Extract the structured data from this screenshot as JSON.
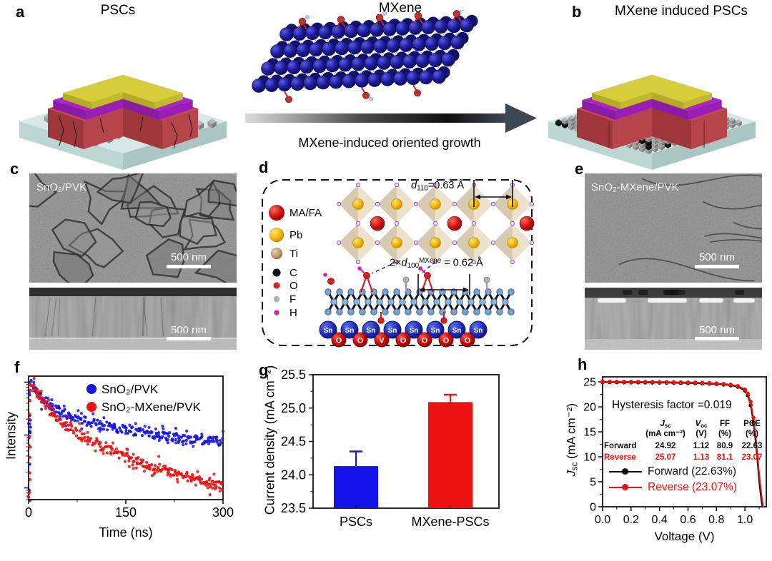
{
  "panels": {
    "a": {
      "label": "a",
      "title": "PSCs"
    },
    "mxene": {
      "title": "MXene",
      "caption": "MXene-induced oriented growth"
    },
    "b": {
      "label": "b",
      "title": "MXene induced PSCs"
    },
    "c": {
      "label": "c",
      "image_label": "SnO₂/PVK",
      "scale_top": "500 nm",
      "scale_bottom": "500 nm"
    },
    "d": {
      "label": "d",
      "legend": [
        {
          "name": "MA/FA",
          "color": "#d40f0f",
          "r": 11
        },
        {
          "name": "Pb",
          "color": "#f2b600",
          "r": 10
        },
        {
          "name": "Ti",
          "color": "#c79b72",
          "r": 8
        },
        {
          "name": "C",
          "color": "#121212",
          "r": 5.5
        },
        {
          "name": "O",
          "color": "#dd2121",
          "r": 4.5
        },
        {
          "name": "F",
          "color": "#b3b3b3",
          "r": 4
        },
        {
          "name": "H",
          "color": "#e01ba4",
          "r": 3.5
        }
      ],
      "annotation_perovskite": [
        {
          "t": "d",
          "s": "i"
        },
        {
          "t": "110",
          "s": "sub"
        },
        {
          "t": "=0.63 Å",
          "s": ""
        }
      ],
      "annotation_mxene": [
        {
          "t": "2×",
          "s": ""
        },
        {
          "t": "d",
          "s": "i"
        },
        {
          "t": "100",
          "s": "sub"
        },
        {
          "t": "MXene",
          "s": "sup"
        },
        {
          "t": " = 0.62 Å",
          "s": ""
        }
      ],
      "sn_label": "Sn",
      "o_label": "O",
      "vacancy_label": "V"
    },
    "e": {
      "label": "e",
      "image_label": "SnO₂-MXene/PVK",
      "scale_top": "500 nm",
      "scale_bottom": "500 nm"
    },
    "f": {
      "label": "f"
    },
    "g": {
      "label": "g"
    },
    "h": {
      "label": "h"
    }
  },
  "chart_data": [
    {
      "id": "f",
      "type": "scatter",
      "xlabel": "Time (ns)",
      "ylabel": "Intensity",
      "xlim": [
        0,
        300
      ],
      "xticks": [
        0,
        150,
        300
      ],
      "yscale": "log",
      "ylim": [
        0.006,
        1.3
      ],
      "legend_position": "top-left-inside",
      "series": [
        {
          "name": "SnO₂/PVK",
          "color": "#1414e0",
          "points": [
            [
              2,
              1.0
            ],
            [
              4,
              0.95
            ],
            [
              6,
              0.88
            ],
            [
              8,
              0.82
            ],
            [
              10,
              0.76
            ],
            [
              14,
              0.65
            ],
            [
              18,
              0.56
            ],
            [
              22,
              0.49
            ],
            [
              26,
              0.435
            ],
            [
              30,
              0.395
            ],
            [
              36,
              0.345
            ],
            [
              42,
              0.31
            ],
            [
              50,
              0.275
            ],
            [
              58,
              0.248
            ],
            [
              66,
              0.228
            ],
            [
              75,
              0.208
            ],
            [
              85,
              0.19
            ],
            [
              95,
              0.176
            ],
            [
              110,
              0.158
            ],
            [
              125,
              0.144
            ],
            [
              140,
              0.132
            ],
            [
              155,
              0.122
            ],
            [
              170,
              0.113
            ],
            [
              185,
              0.106
            ],
            [
              200,
              0.1
            ],
            [
              220,
              0.092
            ],
            [
              240,
              0.086
            ],
            [
              260,
              0.081
            ],
            [
              280,
              0.077
            ],
            [
              300,
              0.074
            ]
          ]
        },
        {
          "name": "SnO₂-MXene/PVK",
          "color": "#ea1212",
          "points": [
            [
              2,
              1.0
            ],
            [
              4,
              0.92
            ],
            [
              6,
              0.84
            ],
            [
              8,
              0.77
            ],
            [
              10,
              0.7
            ],
            [
              14,
              0.59
            ],
            [
              18,
              0.5
            ],
            [
              22,
              0.425
            ],
            [
              26,
              0.365
            ],
            [
              30,
              0.315
            ],
            [
              36,
              0.26
            ],
            [
              42,
              0.22
            ],
            [
              50,
              0.18
            ],
            [
              58,
              0.15
            ],
            [
              66,
              0.127
            ],
            [
              75,
              0.107
            ],
            [
              85,
              0.091
            ],
            [
              95,
              0.078
            ],
            [
              110,
              0.063
            ],
            [
              125,
              0.052
            ],
            [
              140,
              0.044
            ],
            [
              155,
              0.037
            ],
            [
              170,
              0.032
            ],
            [
              185,
              0.027
            ],
            [
              200,
              0.024
            ],
            [
              220,
              0.02
            ],
            [
              240,
              0.017
            ],
            [
              260,
              0.0145
            ],
            [
              280,
              0.0125
            ],
            [
              300,
              0.011
            ]
          ]
        }
      ]
    },
    {
      "id": "g",
      "type": "bar",
      "categories": [
        "PSCs",
        "MXene-PSCs"
      ],
      "values": [
        24.13,
        25.09
      ],
      "errors": [
        0.22,
        0.11
      ],
      "colors": [
        "#1212e6",
        "#ee1111"
      ],
      "ylabel": "Current density (mA cm⁻²)",
      "ylim": [
        23.5,
        25.5
      ],
      "yticks": [
        "23.5",
        "24.0",
        "24.5",
        "25.0",
        "25.5"
      ]
    },
    {
      "id": "h",
      "type": "line",
      "xlabel": "Voltage (V)",
      "ylabel_rich": [
        {
          "t": "J",
          "s": "i"
        },
        {
          "t": "sc",
          "s": "sub"
        },
        {
          "t": " (mA cm⁻²)",
          "s": ""
        }
      ],
      "xlim": [
        0,
        1.15
      ],
      "ylim": [
        0,
        26
      ],
      "xticks": [
        "0.0",
        "0.2",
        "0.4",
        "0.6",
        "0.8",
        "1.0"
      ],
      "yticks": [
        0,
        5,
        10,
        15,
        20,
        25
      ],
      "annotation": "Hysteresis factor =0.019",
      "table": {
        "headers": [
          {
            "top": [
              {
                "t": "J",
                "s": "i"
              },
              {
                "t": "sc",
                "s": "sub"
              }
            ],
            "bottom": "(mA cm⁻²)"
          },
          {
            "top": [
              {
                "t": "V",
                "s": "i"
              },
              {
                "t": "oc",
                "s": "sub"
              }
            ],
            "bottom": "(V)"
          },
          {
            "top": "FF",
            "bottom": "(%)"
          },
          {
            "top": "PCE",
            "bottom": "(%)"
          }
        ],
        "rows": [
          {
            "name": "Forward",
            "color": "#111111",
            "values": [
              "24.92",
              "1.12",
              "80.9",
              "22.63"
            ]
          },
          {
            "name": "Reverse",
            "color": "#ee1111",
            "values": [
              "25.07",
              "1.13",
              "81.1",
              "23.07"
            ]
          }
        ]
      },
      "legend": [
        {
          "label": "Forward (22.63%)",
          "color": "#111111"
        },
        {
          "label": "Reverse (23.07%)",
          "color": "#ee1111"
        }
      ],
      "series": [
        {
          "name": "Forward",
          "color": "#111111",
          "points": [
            [
              0,
              24.92
            ],
            [
              0.05,
              24.91
            ],
            [
              0.1,
              24.9
            ],
            [
              0.15,
              24.89
            ],
            [
              0.2,
              24.88
            ],
            [
              0.25,
              24.87
            ],
            [
              0.3,
              24.86
            ],
            [
              0.35,
              24.84
            ],
            [
              0.4,
              24.83
            ],
            [
              0.45,
              24.81
            ],
            [
              0.5,
              24.79
            ],
            [
              0.55,
              24.77
            ],
            [
              0.6,
              24.74
            ],
            [
              0.65,
              24.71
            ],
            [
              0.7,
              24.67
            ],
            [
              0.75,
              24.62
            ],
            [
              0.8,
              24.55
            ],
            [
              0.85,
              24.45
            ],
            [
              0.9,
              24.28
            ],
            [
              0.95,
              24.0
            ],
            [
              1.0,
              23.25
            ],
            [
              1.02,
              22.3
            ],
            [
              1.04,
              20.3
            ],
            [
              1.06,
              16.8
            ],
            [
              1.08,
              11.5
            ],
            [
              1.1,
              5.0
            ],
            [
              1.115,
              1.2
            ],
            [
              1.122,
              0
            ]
          ]
        },
        {
          "name": "Reverse",
          "color": "#ee1111",
          "points": [
            [
              0,
              25.07
            ],
            [
              0.05,
              25.06
            ],
            [
              0.1,
              25.05
            ],
            [
              0.15,
              25.04
            ],
            [
              0.2,
              25.03
            ],
            [
              0.25,
              25.02
            ],
            [
              0.3,
              25.01
            ],
            [
              0.35,
              25.0
            ],
            [
              0.4,
              24.98
            ],
            [
              0.45,
              24.97
            ],
            [
              0.5,
              24.95
            ],
            [
              0.55,
              24.93
            ],
            [
              0.6,
              24.9
            ],
            [
              0.65,
              24.87
            ],
            [
              0.7,
              24.83
            ],
            [
              0.75,
              24.78
            ],
            [
              0.8,
              24.7
            ],
            [
              0.85,
              24.6
            ],
            [
              0.9,
              24.45
            ],
            [
              0.95,
              24.18
            ],
            [
              1.0,
              23.5
            ],
            [
              1.02,
              22.65
            ],
            [
              1.04,
              21.0
            ],
            [
              1.06,
              17.8
            ],
            [
              1.08,
              13.0
            ],
            [
              1.1,
              6.8
            ],
            [
              1.12,
              1.6
            ],
            [
              1.13,
              0
            ]
          ]
        }
      ]
    }
  ]
}
